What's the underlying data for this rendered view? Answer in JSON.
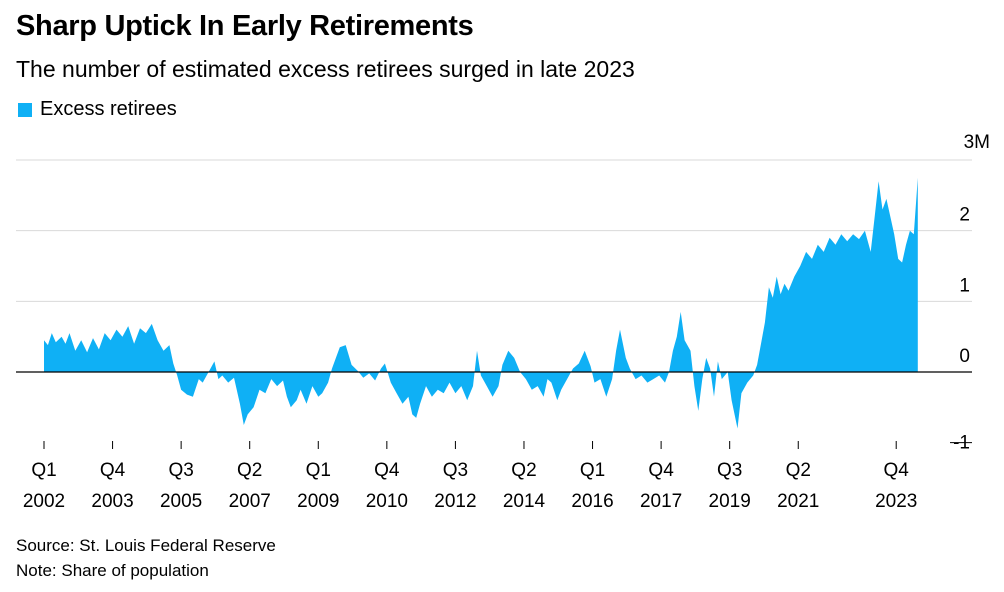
{
  "header": {
    "title": "Sharp Uptick In Early Retirements",
    "subtitle": "The number of estimated excess retirees surged in late 2023"
  },
  "legend": {
    "label": "Excess retirees",
    "color": "#0fb0f5"
  },
  "footer": {
    "source": "Source: St. Louis Federal Reserve",
    "note": "Note: Share of population"
  },
  "chart_data": {
    "type": "area",
    "title": "Sharp Uptick In Early Retirements",
    "subtitle": "The number of estimated excess retirees surged in late 2023",
    "series_name": "Excess retirees",
    "color": "#0fb0f5",
    "unit": "M",
    "ylim": [
      -1.2,
      3
    ],
    "yticks": [
      {
        "value": 3,
        "label": "3M"
      },
      {
        "value": 2,
        "label": "2"
      },
      {
        "value": 1,
        "label": "1"
      },
      {
        "value": 0,
        "label": "0"
      },
      {
        "value": -1,
        "label": "-1"
      }
    ],
    "xlim": [
      2002.0,
      2024.0
    ],
    "xticks": [
      {
        "value": 2002.0,
        "quarter": "Q1",
        "year": "2002"
      },
      {
        "value": 2003.75,
        "quarter": "Q4",
        "year": "2003"
      },
      {
        "value": 2005.5,
        "quarter": "Q3",
        "year": "2005"
      },
      {
        "value": 2007.25,
        "quarter": "Q2",
        "year": "2007"
      },
      {
        "value": 2009.0,
        "quarter": "Q1",
        "year": "2009"
      },
      {
        "value": 2010.75,
        "quarter": "Q4",
        "year": "2010"
      },
      {
        "value": 2012.5,
        "quarter": "Q3",
        "year": "2012"
      },
      {
        "value": 2014.25,
        "quarter": "Q2",
        "year": "2014"
      },
      {
        "value": 2016.0,
        "quarter": "Q1",
        "year": "2016"
      },
      {
        "value": 2017.75,
        "quarter": "Q4",
        "year": "2017"
      },
      {
        "value": 2019.5,
        "quarter": "Q3",
        "year": "2019"
      },
      {
        "value": 2021.25,
        "quarter": "Q2",
        "year": "2021"
      },
      {
        "value": 2023.75,
        "quarter": "Q4",
        "year": "2023"
      }
    ],
    "points": [
      [
        2002.0,
        0.45
      ],
      [
        2002.1,
        0.38
      ],
      [
        2002.2,
        0.55
      ],
      [
        2002.3,
        0.42
      ],
      [
        2002.45,
        0.5
      ],
      [
        2002.55,
        0.4
      ],
      [
        2002.65,
        0.55
      ],
      [
        2002.8,
        0.3
      ],
      [
        2002.95,
        0.45
      ],
      [
        2003.1,
        0.28
      ],
      [
        2003.25,
        0.48
      ],
      [
        2003.4,
        0.32
      ],
      [
        2003.55,
        0.55
      ],
      [
        2003.7,
        0.45
      ],
      [
        2003.85,
        0.6
      ],
      [
        2004.0,
        0.5
      ],
      [
        2004.15,
        0.65
      ],
      [
        2004.3,
        0.4
      ],
      [
        2004.45,
        0.62
      ],
      [
        2004.6,
        0.55
      ],
      [
        2004.75,
        0.68
      ],
      [
        2004.9,
        0.45
      ],
      [
        2005.05,
        0.3
      ],
      [
        2005.2,
        0.38
      ],
      [
        2005.3,
        0.12
      ],
      [
        2005.4,
        -0.05
      ],
      [
        2005.5,
        -0.25
      ],
      [
        2005.65,
        -0.32
      ],
      [
        2005.8,
        -0.35
      ],
      [
        2005.95,
        -0.1
      ],
      [
        2006.05,
        -0.15
      ],
      [
        2006.2,
        0.0
      ],
      [
        2006.35,
        0.15
      ],
      [
        2006.45,
        -0.1
      ],
      [
        2006.55,
        -0.05
      ],
      [
        2006.7,
        -0.15
      ],
      [
        2006.85,
        -0.08
      ],
      [
        2007.0,
        -0.45
      ],
      [
        2007.1,
        -0.75
      ],
      [
        2007.2,
        -0.6
      ],
      [
        2007.35,
        -0.5
      ],
      [
        2007.5,
        -0.25
      ],
      [
        2007.65,
        -0.3
      ],
      [
        2007.8,
        -0.1
      ],
      [
        2007.95,
        -0.2
      ],
      [
        2008.1,
        -0.12
      ],
      [
        2008.2,
        -0.35
      ],
      [
        2008.3,
        -0.5
      ],
      [
        2008.45,
        -0.4
      ],
      [
        2008.55,
        -0.25
      ],
      [
        2008.7,
        -0.45
      ],
      [
        2008.85,
        -0.2
      ],
      [
        2009.0,
        -0.35
      ],
      [
        2009.1,
        -0.3
      ],
      [
        2009.25,
        -0.15
      ],
      [
        2009.35,
        0.05
      ],
      [
        2009.45,
        0.2
      ],
      [
        2009.55,
        0.35
      ],
      [
        2009.7,
        0.38
      ],
      [
        2009.85,
        0.1
      ],
      [
        2010.0,
        0.02
      ],
      [
        2010.15,
        -0.08
      ],
      [
        2010.3,
        -0.02
      ],
      [
        2010.45,
        -0.12
      ],
      [
        2010.6,
        0.05
      ],
      [
        2010.7,
        0.12
      ],
      [
        2010.85,
        -0.15
      ],
      [
        2011.0,
        -0.3
      ],
      [
        2011.15,
        -0.45
      ],
      [
        2011.3,
        -0.35
      ],
      [
        2011.4,
        -0.6
      ],
      [
        2011.5,
        -0.65
      ],
      [
        2011.6,
        -0.45
      ],
      [
        2011.75,
        -0.2
      ],
      [
        2011.9,
        -0.35
      ],
      [
        2012.05,
        -0.25
      ],
      [
        2012.2,
        -0.3
      ],
      [
        2012.35,
        -0.15
      ],
      [
        2012.5,
        -0.3
      ],
      [
        2012.65,
        -0.2
      ],
      [
        2012.8,
        -0.4
      ],
      [
        2012.95,
        -0.2
      ],
      [
        2013.05,
        0.3
      ],
      [
        2013.15,
        -0.05
      ],
      [
        2013.3,
        -0.2
      ],
      [
        2013.45,
        -0.35
      ],
      [
        2013.6,
        -0.2
      ],
      [
        2013.7,
        0.1
      ],
      [
        2013.85,
        0.3
      ],
      [
        2014.0,
        0.2
      ],
      [
        2014.15,
        0.0
      ],
      [
        2014.3,
        -0.1
      ],
      [
        2014.45,
        -0.25
      ],
      [
        2014.6,
        -0.2
      ],
      [
        2014.75,
        -0.35
      ],
      [
        2014.85,
        -0.1
      ],
      [
        2014.95,
        -0.15
      ],
      [
        2015.1,
        -0.4
      ],
      [
        2015.2,
        -0.25
      ],
      [
        2015.35,
        -0.1
      ],
      [
        2015.5,
        0.05
      ],
      [
        2015.65,
        0.12
      ],
      [
        2015.8,
        0.3
      ],
      [
        2015.95,
        0.08
      ],
      [
        2016.05,
        -0.15
      ],
      [
        2016.2,
        -0.1
      ],
      [
        2016.35,
        -0.35
      ],
      [
        2016.5,
        -0.1
      ],
      [
        2016.6,
        0.3
      ],
      [
        2016.7,
        0.6
      ],
      [
        2016.85,
        0.2
      ],
      [
        2016.95,
        0.05
      ],
      [
        2017.1,
        -0.1
      ],
      [
        2017.25,
        -0.05
      ],
      [
        2017.4,
        -0.15
      ],
      [
        2017.55,
        -0.1
      ],
      [
        2017.7,
        -0.05
      ],
      [
        2017.85,
        -0.15
      ],
      [
        2017.95,
        0.0
      ],
      [
        2018.05,
        0.3
      ],
      [
        2018.15,
        0.5
      ],
      [
        2018.25,
        0.85
      ],
      [
        2018.35,
        0.45
      ],
      [
        2018.5,
        0.3
      ],
      [
        2018.6,
        -0.2
      ],
      [
        2018.7,
        -0.55
      ],
      [
        2018.8,
        -0.1
      ],
      [
        2018.9,
        0.2
      ],
      [
        2019.0,
        0.05
      ],
      [
        2019.1,
        -0.35
      ],
      [
        2019.2,
        0.15
      ],
      [
        2019.3,
        -0.1
      ],
      [
        2019.45,
        0.0
      ],
      [
        2019.55,
        -0.4
      ],
      [
        2019.7,
        -0.8
      ],
      [
        2019.8,
        -0.3
      ],
      [
        2019.95,
        -0.15
      ],
      [
        2020.1,
        -0.05
      ],
      [
        2020.2,
        0.1
      ],
      [
        2020.3,
        0.4
      ],
      [
        2020.4,
        0.7
      ],
      [
        2020.5,
        1.2
      ],
      [
        2020.6,
        1.05
      ],
      [
        2020.7,
        1.35
      ],
      [
        2020.8,
        1.1
      ],
      [
        2020.9,
        1.25
      ],
      [
        2021.0,
        1.15
      ],
      [
        2021.15,
        1.35
      ],
      [
        2021.3,
        1.5
      ],
      [
        2021.45,
        1.7
      ],
      [
        2021.6,
        1.6
      ],
      [
        2021.75,
        1.8
      ],
      [
        2021.9,
        1.7
      ],
      [
        2022.05,
        1.9
      ],
      [
        2022.2,
        1.8
      ],
      [
        2022.35,
        1.95
      ],
      [
        2022.5,
        1.85
      ],
      [
        2022.65,
        1.95
      ],
      [
        2022.8,
        1.88
      ],
      [
        2022.95,
        2.0
      ],
      [
        2023.1,
        1.7
      ],
      [
        2023.2,
        2.2
      ],
      [
        2023.3,
        2.7
      ],
      [
        2023.4,
        2.3
      ],
      [
        2023.5,
        2.45
      ],
      [
        2023.6,
        2.2
      ],
      [
        2023.7,
        1.95
      ],
      [
        2023.8,
        1.6
      ],
      [
        2023.9,
        1.55
      ],
      [
        2024.0,
        1.8
      ],
      [
        2024.1,
        2.0
      ],
      [
        2024.2,
        1.95
      ],
      [
        2024.3,
        2.75
      ]
    ]
  }
}
